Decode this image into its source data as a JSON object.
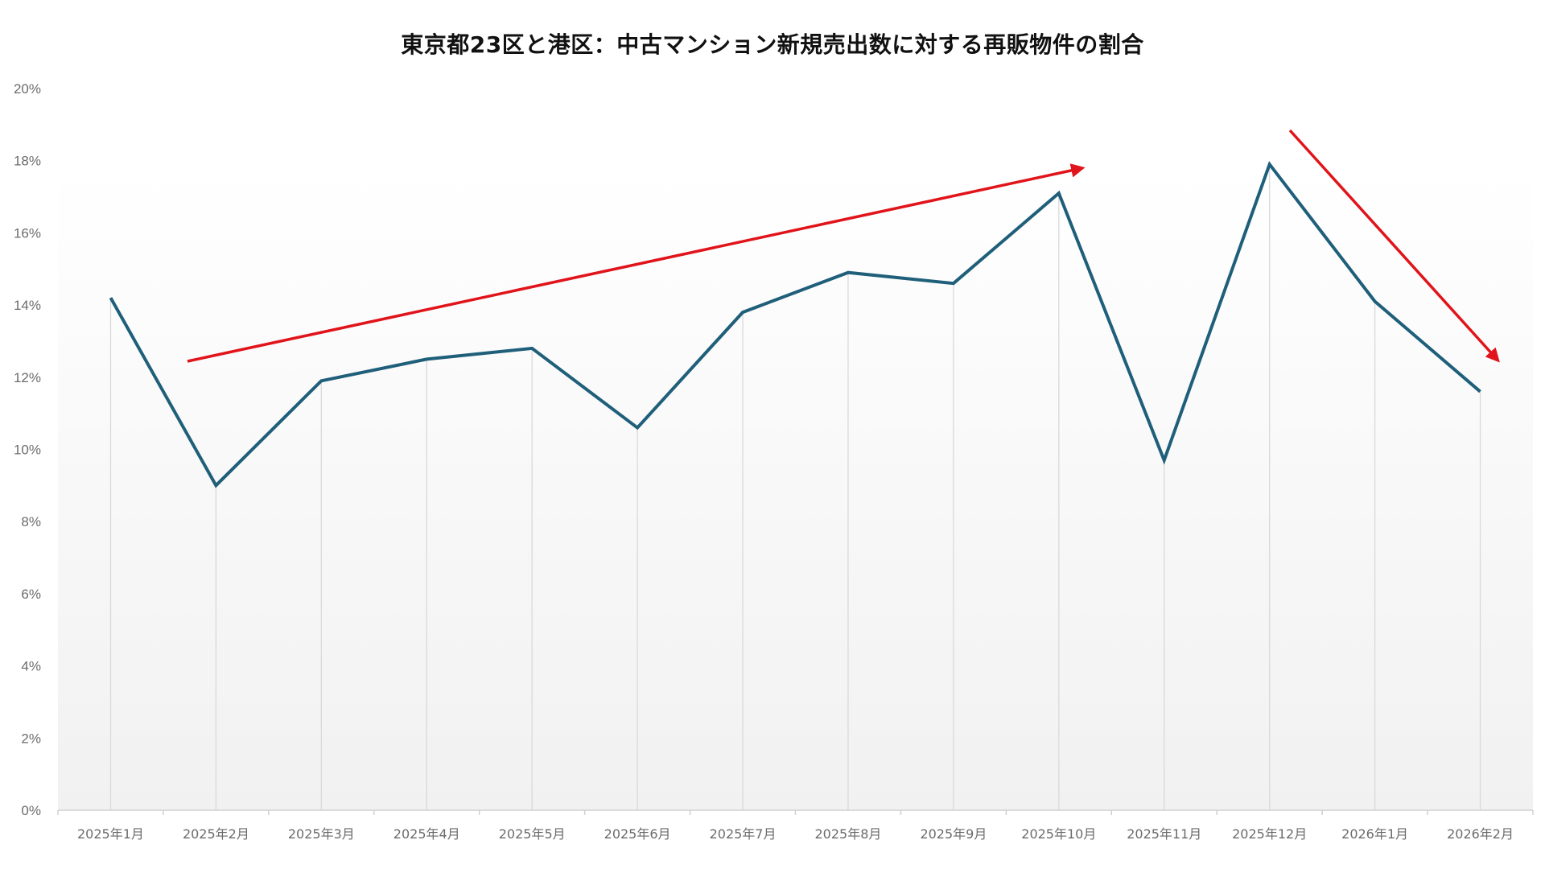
{
  "chart_data": {
    "type": "line",
    "title": "東京都23区と港区：中古マンション新規売出数に対する再販物件の割合",
    "xlabel": "",
    "ylabel": "",
    "ylim": [
      0,
      20
    ],
    "yticks": [
      "0%",
      "2%",
      "4%",
      "6%",
      "8%",
      "10%",
      "12%",
      "14%",
      "16%",
      "18%",
      "20%"
    ],
    "grid": "vertical",
    "legend": null,
    "categories": [
      "2025年1月",
      "2025年2月",
      "2025年3月",
      "2025年4月",
      "2025年5月",
      "2025年6月",
      "2025年7月",
      "2025年8月",
      "2025年9月",
      "2025年10月",
      "2025年11月",
      "2025年12月",
      "2026年1月",
      "2026年2月"
    ],
    "series": [
      {
        "name": "再販物件の割合",
        "color": "#1f5f7a",
        "values": [
          14.2,
          9.0,
          11.9,
          12.5,
          12.8,
          10.6,
          13.8,
          14.9,
          14.6,
          17.1,
          9.7,
          17.9,
          14.1,
          11.6
        ]
      }
    ],
    "annotations": [
      {
        "type": "arrow",
        "color": "#e0141a",
        "direction": "up",
        "from_category": "2025年2月",
        "to_category": "2025年10月",
        "from_value": 12.4,
        "to_value": 17.7
      },
      {
        "type": "arrow",
        "color": "#e0141a",
        "direction": "down",
        "from_category": "2025年12月",
        "to_category": "2026年2月",
        "from_value": 18.8,
        "to_value": 12.4
      }
    ]
  },
  "colors": {
    "line": "#1f5f7a",
    "arrow": "#e0141a",
    "grid": "#d9d9d9",
    "axis_text": "#6b6b6b",
    "title": "#111111"
  }
}
